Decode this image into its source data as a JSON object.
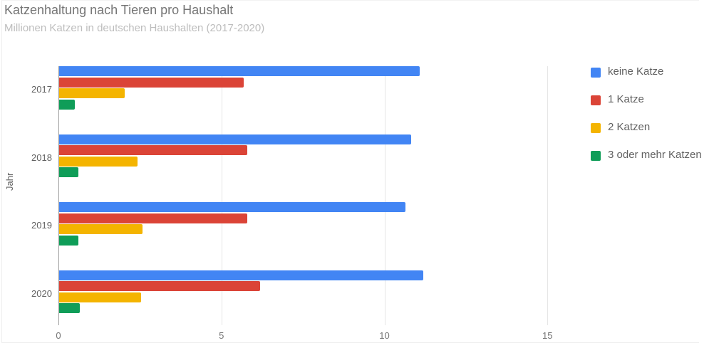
{
  "title": "Katzenhaltung nach Tieren pro Haushalt",
  "subtitle": "Millionen Katzen in deutschen Haushalten (2017-2020)",
  "y_axis_label": "Jahr",
  "x_ticks": [
    "0",
    "5",
    "10",
    "15"
  ],
  "legend": [
    {
      "label": "keine Katze",
      "color": "#4285f4"
    },
    {
      "label": "1 Katze",
      "color": "#db4437"
    },
    {
      "label": "2 Katzen",
      "color": "#f4b400"
    },
    {
      "label": "3 oder mehr Katzen",
      "color": "#0f9d58"
    }
  ],
  "chart_data": {
    "type": "bar",
    "orientation": "horizontal",
    "title": "Katzenhaltung nach Tieren pro Haushalt",
    "subtitle": "Millionen Katzen in deutschen Haushalten (2017-2020)",
    "xlabel": "",
    "ylabel": "Jahr",
    "xlim": [
      0,
      15
    ],
    "x_ticks": [
      0,
      5,
      10,
      15
    ],
    "grid": true,
    "legend_position": "right",
    "categories": [
      "2017",
      "2018",
      "2019",
      "2020"
    ],
    "series": [
      {
        "name": "keine Katze",
        "color": "#4285f4",
        "values": [
          11.05,
          10.8,
          10.63,
          11.16
        ]
      },
      {
        "name": "1 Katze",
        "color": "#db4437",
        "values": [
          5.66,
          5.76,
          5.77,
          6.17
        ]
      },
      {
        "name": "2 Katzen",
        "color": "#f4b400",
        "values": [
          2.02,
          2.4,
          2.55,
          2.52
        ]
      },
      {
        "name": "3 oder mehr Katzen",
        "color": "#0f9d58",
        "values": [
          0.47,
          0.6,
          0.6,
          0.63
        ]
      }
    ]
  }
}
